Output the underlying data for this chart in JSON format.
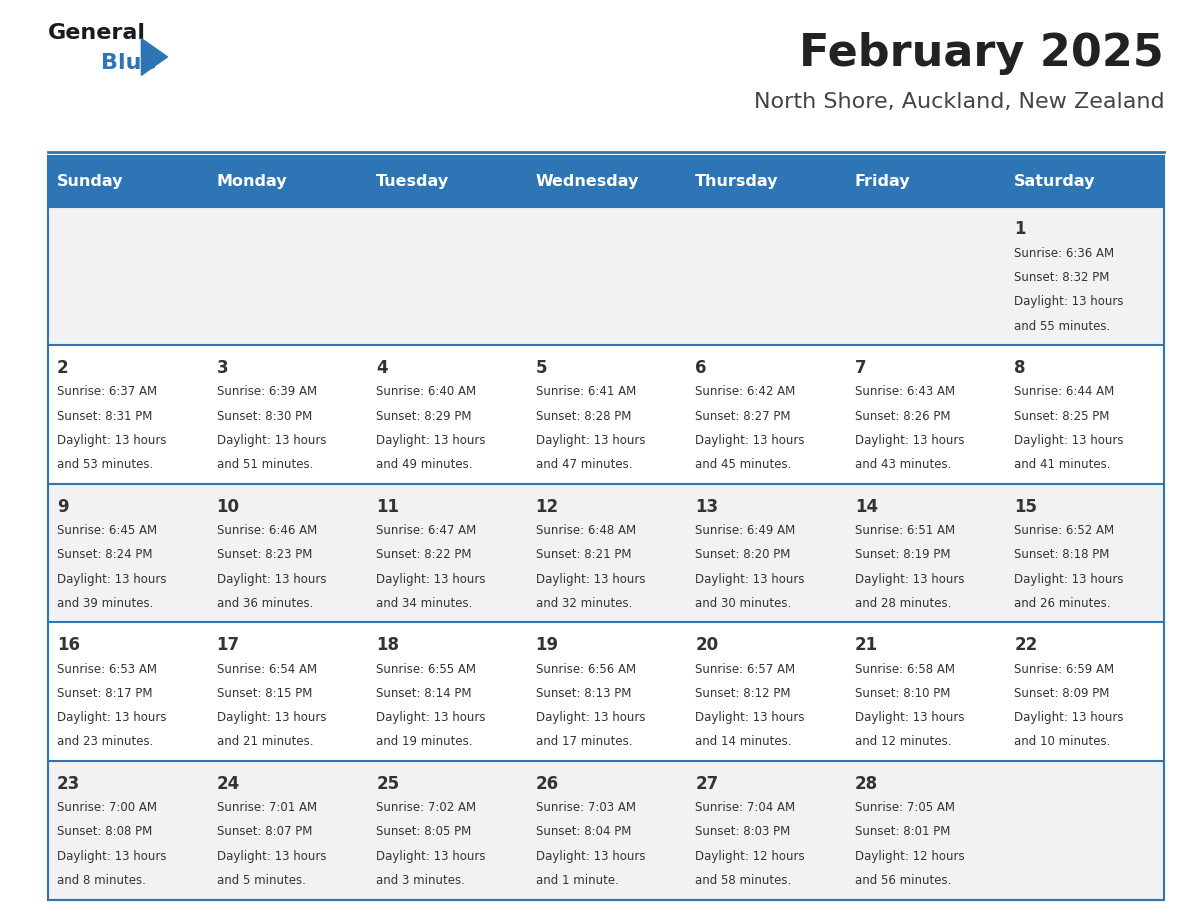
{
  "title": "February 2025",
  "subtitle": "North Shore, Auckland, New Zealand",
  "header_bg": "#2E75B6",
  "header_text_color": "#FFFFFF",
  "day_headers": [
    "Sunday",
    "Monday",
    "Tuesday",
    "Wednesday",
    "Thursday",
    "Friday",
    "Saturday"
  ],
  "title_color": "#222222",
  "subtitle_color": "#444444",
  "cell_bg_even": "#F2F2F2",
  "cell_bg_odd": "#FFFFFF",
  "divider_color": "#2E75B6",
  "day_num_color": "#333333",
  "info_color": "#333333",
  "logo_general_color": "#1a1a1a",
  "logo_blue_color": "#2E75B6",
  "calendar_data": [
    [
      {
        "day": null
      },
      {
        "day": null
      },
      {
        "day": null
      },
      {
        "day": null
      },
      {
        "day": null
      },
      {
        "day": null
      },
      {
        "day": 1,
        "sunrise": "6:36 AM",
        "sunset": "8:32 PM",
        "daylight": "13 hours and 55 minutes"
      }
    ],
    [
      {
        "day": 2,
        "sunrise": "6:37 AM",
        "sunset": "8:31 PM",
        "daylight": "13 hours and 53 minutes"
      },
      {
        "day": 3,
        "sunrise": "6:39 AM",
        "sunset": "8:30 PM",
        "daylight": "13 hours and 51 minutes"
      },
      {
        "day": 4,
        "sunrise": "6:40 AM",
        "sunset": "8:29 PM",
        "daylight": "13 hours and 49 minutes"
      },
      {
        "day": 5,
        "sunrise": "6:41 AM",
        "sunset": "8:28 PM",
        "daylight": "13 hours and 47 minutes"
      },
      {
        "day": 6,
        "sunrise": "6:42 AM",
        "sunset": "8:27 PM",
        "daylight": "13 hours and 45 minutes"
      },
      {
        "day": 7,
        "sunrise": "6:43 AM",
        "sunset": "8:26 PM",
        "daylight": "13 hours and 43 minutes"
      },
      {
        "day": 8,
        "sunrise": "6:44 AM",
        "sunset": "8:25 PM",
        "daylight": "13 hours and 41 minutes"
      }
    ],
    [
      {
        "day": 9,
        "sunrise": "6:45 AM",
        "sunset": "8:24 PM",
        "daylight": "13 hours and 39 minutes"
      },
      {
        "day": 10,
        "sunrise": "6:46 AM",
        "sunset": "8:23 PM",
        "daylight": "13 hours and 36 minutes"
      },
      {
        "day": 11,
        "sunrise": "6:47 AM",
        "sunset": "8:22 PM",
        "daylight": "13 hours and 34 minutes"
      },
      {
        "day": 12,
        "sunrise": "6:48 AM",
        "sunset": "8:21 PM",
        "daylight": "13 hours and 32 minutes"
      },
      {
        "day": 13,
        "sunrise": "6:49 AM",
        "sunset": "8:20 PM",
        "daylight": "13 hours and 30 minutes"
      },
      {
        "day": 14,
        "sunrise": "6:51 AM",
        "sunset": "8:19 PM",
        "daylight": "13 hours and 28 minutes"
      },
      {
        "day": 15,
        "sunrise": "6:52 AM",
        "sunset": "8:18 PM",
        "daylight": "13 hours and 26 minutes"
      }
    ],
    [
      {
        "day": 16,
        "sunrise": "6:53 AM",
        "sunset": "8:17 PM",
        "daylight": "13 hours and 23 minutes"
      },
      {
        "day": 17,
        "sunrise": "6:54 AM",
        "sunset": "8:15 PM",
        "daylight": "13 hours and 21 minutes"
      },
      {
        "day": 18,
        "sunrise": "6:55 AM",
        "sunset": "8:14 PM",
        "daylight": "13 hours and 19 minutes"
      },
      {
        "day": 19,
        "sunrise": "6:56 AM",
        "sunset": "8:13 PM",
        "daylight": "13 hours and 17 minutes"
      },
      {
        "day": 20,
        "sunrise": "6:57 AM",
        "sunset": "8:12 PM",
        "daylight": "13 hours and 14 minutes"
      },
      {
        "day": 21,
        "sunrise": "6:58 AM",
        "sunset": "8:10 PM",
        "daylight": "13 hours and 12 minutes"
      },
      {
        "day": 22,
        "sunrise": "6:59 AM",
        "sunset": "8:09 PM",
        "daylight": "13 hours and 10 minutes"
      }
    ],
    [
      {
        "day": 23,
        "sunrise": "7:00 AM",
        "sunset": "8:08 PM",
        "daylight": "13 hours and 8 minutes"
      },
      {
        "day": 24,
        "sunrise": "7:01 AM",
        "sunset": "8:07 PM",
        "daylight": "13 hours and 5 minutes"
      },
      {
        "day": 25,
        "sunrise": "7:02 AM",
        "sunset": "8:05 PM",
        "daylight": "13 hours and 3 minutes"
      },
      {
        "day": 26,
        "sunrise": "7:03 AM",
        "sunset": "8:04 PM",
        "daylight": "13 hours and 1 minute"
      },
      {
        "day": 27,
        "sunrise": "7:04 AM",
        "sunset": "8:03 PM",
        "daylight": "12 hours and 58 minutes"
      },
      {
        "day": 28,
        "sunrise": "7:05 AM",
        "sunset": "8:01 PM",
        "daylight": "12 hours and 56 minutes"
      },
      {
        "day": null
      }
    ]
  ]
}
